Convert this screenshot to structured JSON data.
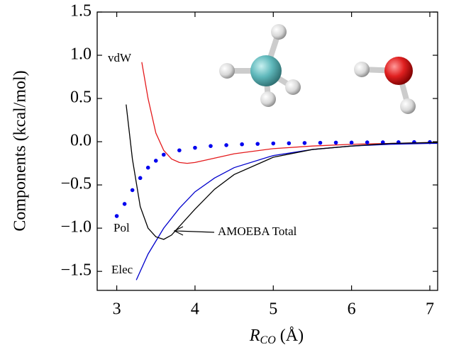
{
  "chart_data": {
    "type": "line",
    "ylabel": "Components (kcal/mol)",
    "xlabel": {
      "symbol": "R",
      "subscript": "CO",
      "unit": "(Å)"
    },
    "xlim": [
      2.75,
      7.1
    ],
    "ylim": [
      -1.72,
      1.5
    ],
    "xticks": [
      3,
      4,
      5,
      6,
      7
    ],
    "yticks": [
      {
        "value": 1.5,
        "label": "1.5"
      },
      {
        "value": 1.0,
        "label": "1.0"
      },
      {
        "value": 0.5,
        "label": "0.5"
      },
      {
        "value": 0.0,
        "label": "0.0"
      },
      {
        "value": -0.5,
        "label": "−0.5"
      },
      {
        "value": -1.0,
        "label": "−1.0"
      },
      {
        "value": -1.5,
        "label": "−1.5"
      }
    ],
    "series": [
      {
        "name": "vdW",
        "color": "#e41a1c",
        "style": "line",
        "x": [
          3.32,
          3.4,
          3.5,
          3.6,
          3.7,
          3.8,
          3.9,
          4.0,
          4.2,
          4.5,
          5.0,
          5.5,
          6.0,
          6.5,
          7.0,
          7.1
        ],
        "values": [
          0.92,
          0.5,
          0.1,
          -0.1,
          -0.2,
          -0.24,
          -0.25,
          -0.24,
          -0.2,
          -0.14,
          -0.08,
          -0.05,
          -0.03,
          -0.02,
          -0.01,
          -0.01
        ]
      },
      {
        "name": "Pol",
        "color": "#0000ee",
        "style": "dots",
        "x": [
          3.0,
          3.1,
          3.2,
          3.3,
          3.4,
          3.5,
          3.6,
          3.8,
          4.0,
          4.2,
          4.4,
          4.6,
          4.8,
          5.0,
          5.2,
          5.4,
          5.6,
          5.8,
          6.0,
          6.2,
          6.4,
          6.6,
          6.8,
          7.0
        ],
        "values": [
          -0.86,
          -0.72,
          -0.56,
          -0.42,
          -0.3,
          -0.22,
          -0.15,
          -0.1,
          -0.07,
          -0.05,
          -0.04,
          -0.03,
          -0.025,
          -0.02,
          -0.018,
          -0.015,
          -0.013,
          -0.011,
          -0.01,
          -0.008,
          -0.007,
          -0.006,
          -0.005,
          -0.005
        ]
      },
      {
        "name": "Elec",
        "color": "#0000cc",
        "style": "line",
        "x": [
          3.25,
          3.4,
          3.6,
          3.8,
          4.0,
          4.25,
          4.5,
          5.0,
          5.5,
          6.0,
          6.5,
          7.0,
          7.1
        ],
        "values": [
          -1.6,
          -1.3,
          -1.0,
          -0.77,
          -0.58,
          -0.42,
          -0.3,
          -0.16,
          -0.09,
          -0.05,
          -0.03,
          -0.02,
          -0.02
        ]
      },
      {
        "name": "AMOEBA Total",
        "color": "#000000",
        "style": "line",
        "x": [
          3.12,
          3.2,
          3.3,
          3.4,
          3.5,
          3.6,
          3.7,
          3.8,
          4.0,
          4.25,
          4.5,
          5.0,
          5.5,
          6.0,
          6.5,
          7.0,
          7.1
        ],
        "values": [
          0.43,
          -0.2,
          -0.75,
          -1.0,
          -1.1,
          -1.13,
          -1.08,
          -0.98,
          -0.78,
          -0.55,
          -0.38,
          -0.18,
          -0.09,
          -0.05,
          -0.02,
          -0.01,
          -0.01
        ]
      }
    ]
  }
}
